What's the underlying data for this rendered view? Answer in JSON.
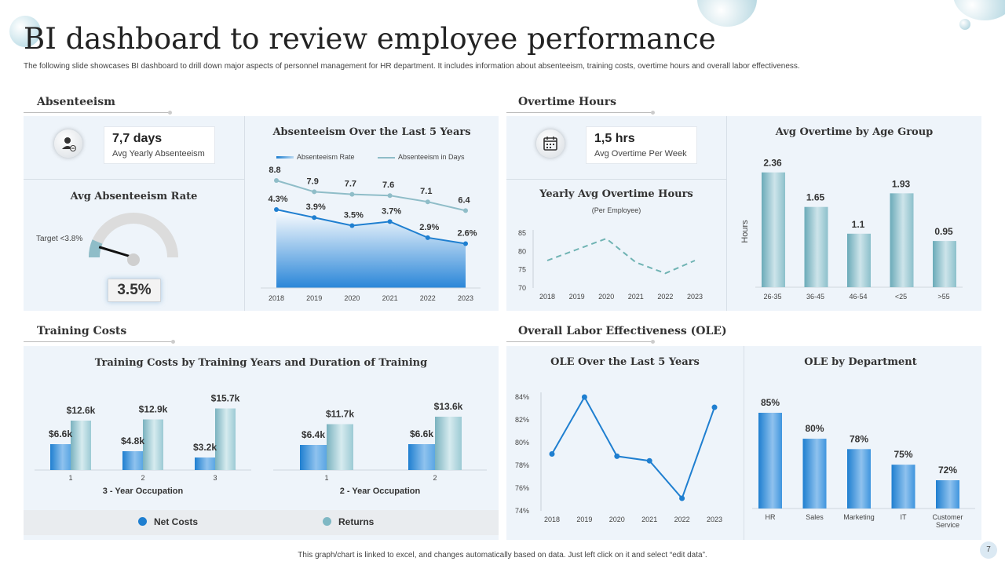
{
  "page": {
    "title": "BI dashboard to review employee performance",
    "subtitle": "The following slide showcases BI dashboard to drill down major aspects of personnel management for HR department. It includes information about absenteeism, training costs, overtime hours and overall labor effectiveness.",
    "footer": "This graph/chart is linked to excel, and changes automatically based on data. Just left click on it and select “edit data”.",
    "page_number": "7"
  },
  "colors": {
    "blue": "#1f7fd0",
    "teal": "#7fb8c4",
    "panel": "#eef4fa"
  },
  "absenteeism": {
    "header": "Absenteeism",
    "kpi_value": "7,7 days",
    "kpi_label": "Avg Yearly Absenteeism",
    "kpi_icon": "user-minus-icon",
    "gauge_title": "Avg Absenteeism Rate",
    "gauge_target": "Target <3.8%",
    "gauge_value": "3.5%"
  },
  "overtime": {
    "header": "Overtime Hours",
    "kpi_value": "1,5 hrs",
    "kpi_label": "Avg Overtime Per Week",
    "kpi_icon": "calendar-icon"
  },
  "training": {
    "header": "Training Costs"
  },
  "ole": {
    "header": "Overall Labor Effectiveness (OLE)"
  },
  "chart_data": [
    {
      "id": "absenteeism_trend",
      "type": "line",
      "title": "Absenteeism Over the Last 5 Years",
      "x": [
        "2018",
        "2019",
        "2020",
        "2021",
        "2022",
        "2023"
      ],
      "series": [
        {
          "name": "Absenteeism Rate",
          "values": [
            4.3,
            3.9,
            3.5,
            3.7,
            2.9,
            2.6
          ],
          "labels": [
            "4.3%",
            "3.9%",
            "3.5%",
            "3.7%",
            "2.9%",
            "2.6%"
          ]
        },
        {
          "name": "Absenteeism in Days",
          "values": [
            8.8,
            7.9,
            7.7,
            7.6,
            7.1,
            6.4
          ],
          "labels": [
            "8.8",
            "7.9",
            "7.7",
            "7.6",
            "7.1",
            "6.4"
          ]
        }
      ]
    },
    {
      "id": "gauge",
      "type": "gauge",
      "title": "Avg Absenteeism Rate",
      "value": 3.5,
      "target": 3.8
    },
    {
      "id": "yearly_overtime",
      "type": "line",
      "title": "Yearly Avg Overtime Hours",
      "subtitle": "(Per Employee)",
      "x": [
        "2018",
        "2019",
        "2020",
        "2021",
        "2022",
        "2023"
      ],
      "values": [
        77.5,
        80.5,
        83.5,
        77,
        74,
        77.5
      ],
      "ylim": [
        70,
        85
      ],
      "yticks": [
        "85",
        "80",
        "75",
        "70"
      ],
      "tick_values": [
        85,
        80,
        75,
        70
      ]
    },
    {
      "id": "overtime_age",
      "type": "bar",
      "title": "Avg Overtime by Age Group",
      "ylabel": "Hours",
      "categories": [
        "26-35",
        "36-45",
        "46-54",
        "<25",
        ">55"
      ],
      "values": [
        2.36,
        1.65,
        1.1,
        1.93,
        0.95
      ],
      "labels": [
        "2.36",
        "1.65",
        "1.1",
        "1.93",
        "0.95"
      ],
      "ylim": [
        0,
        2.5
      ]
    },
    {
      "id": "training_3yr",
      "type": "bar",
      "title": "Training Costs by Training Years and Duration of Training",
      "xlabel": "3 - Year Occupation",
      "categories": [
        "1",
        "2",
        "3"
      ],
      "series": [
        {
          "name": "Net Costs",
          "values": [
            6.6,
            4.8,
            3.2
          ],
          "labels": [
            "$6.6k",
            "$4.8k",
            "$3.2k"
          ]
        },
        {
          "name": "Returns",
          "values": [
            12.6,
            12.9,
            15.7
          ],
          "labels": [
            "$12.6k",
            "$12.9k",
            "$15.7k"
          ]
        }
      ],
      "ylim": [
        0,
        18
      ]
    },
    {
      "id": "training_2yr",
      "type": "bar",
      "xlabel": "2 - Year Occupation",
      "categories": [
        "1",
        "2"
      ],
      "series": [
        {
          "name": "Net Costs",
          "values": [
            6.4,
            6.6
          ],
          "labels": [
            "$6.4k",
            "$6.6k"
          ]
        },
        {
          "name": "Returns",
          "values": [
            11.7,
            13.6
          ],
          "labels": [
            "$11.7k",
            "$13.6k"
          ]
        }
      ],
      "ylim": [
        0,
        16
      ]
    },
    {
      "id": "training_legend",
      "legend": [
        "Net Costs",
        "Returns"
      ]
    },
    {
      "id": "ole_trend",
      "type": "line",
      "title": "OLE Over the Last 5 Years",
      "x": [
        "2018",
        "2019",
        "2020",
        "2021",
        "2022",
        "2023"
      ],
      "values": [
        79.0,
        84.0,
        78.8,
        78.4,
        75.1,
        83.1
      ],
      "ylim": [
        74,
        84
      ],
      "yticks": [
        "84%",
        "82%",
        "80%",
        "78%",
        "76%",
        "74%"
      ],
      "tick_values": [
        84,
        82,
        80,
        78,
        76,
        74
      ]
    },
    {
      "id": "ole_dept",
      "type": "bar",
      "title": "OLE by Department",
      "categories": [
        "HR",
        "Sales",
        "Marketing",
        "IT",
        "Customer Service"
      ],
      "values": [
        85,
        80,
        78,
        75,
        72
      ],
      "labels": [
        "85%",
        "80%",
        "78%",
        "75%",
        "72%"
      ],
      "ylim": [
        60,
        90
      ]
    }
  ]
}
